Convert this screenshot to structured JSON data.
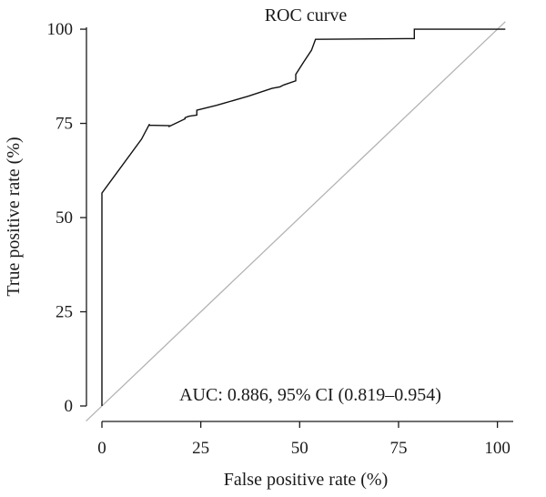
{
  "chart_data": {
    "type": "line",
    "title": "ROC curve",
    "xlabel": "False positive rate (%)",
    "ylabel": "True positive rate (%)",
    "xlim": [
      0,
      100
    ],
    "ylim": [
      0,
      100
    ],
    "x_ticks": [
      "0",
      "25",
      "50",
      "75",
      "100"
    ],
    "y_ticks": [
      "0",
      "25",
      "50",
      "75",
      "100"
    ],
    "annotation": "AUC: 0.886, 95% CI (0.819–0.954)",
    "grid": false,
    "series": [
      {
        "line_color": "#111111",
        "x": [
          0,
          0,
          10,
          12,
          12,
          17,
          17,
          21,
          21,
          22,
          24,
          24,
          29,
          31,
          37,
          43,
          45,
          46,
          49,
          49,
          51,
          53,
          54,
          77,
          78,
          79,
          79,
          102
        ],
        "y": [
          0,
          56.5,
          70.8,
          74.8,
          74.5,
          74.4,
          74.2,
          76.2,
          76.5,
          76.9,
          77.2,
          78.5,
          79.8,
          80.4,
          82.2,
          84.3,
          84.7,
          85.2,
          86.3,
          88.0,
          91.3,
          94.4,
          97.3,
          97.5,
          97.5,
          97.5,
          100,
          100
        ]
      },
      {
        "line_color": "#b3b3b3",
        "x": [
          -4,
          102
        ],
        "y": [
          -4,
          102
        ]
      }
    ]
  }
}
